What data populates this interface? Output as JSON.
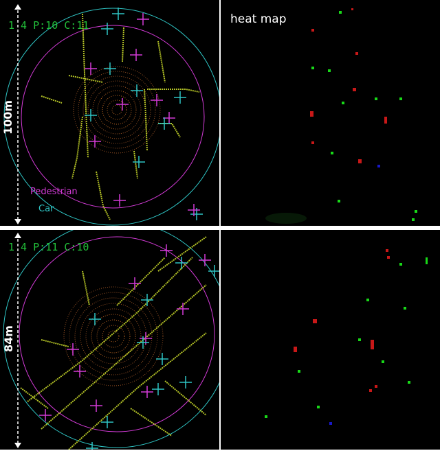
{
  "top_row": {
    "lidar": {
      "status": "1 4 P:10 C:11",
      "scale": "100m",
      "legend_pedestrian": "Pedestrian",
      "legend_car": "Car"
    },
    "heatmap": {
      "title": "heat map"
    }
  },
  "bottom_row": {
    "lidar": {
      "status": "1 4 P:11 C:10",
      "scale": "84m"
    }
  },
  "colors": {
    "pedestrian": "#d43bd8",
    "car": "#2fc6c6",
    "status_text": "#22c03a",
    "heat_green": "#18d818",
    "heat_red": "#c81818",
    "heat_blue": "#1818c8"
  }
}
